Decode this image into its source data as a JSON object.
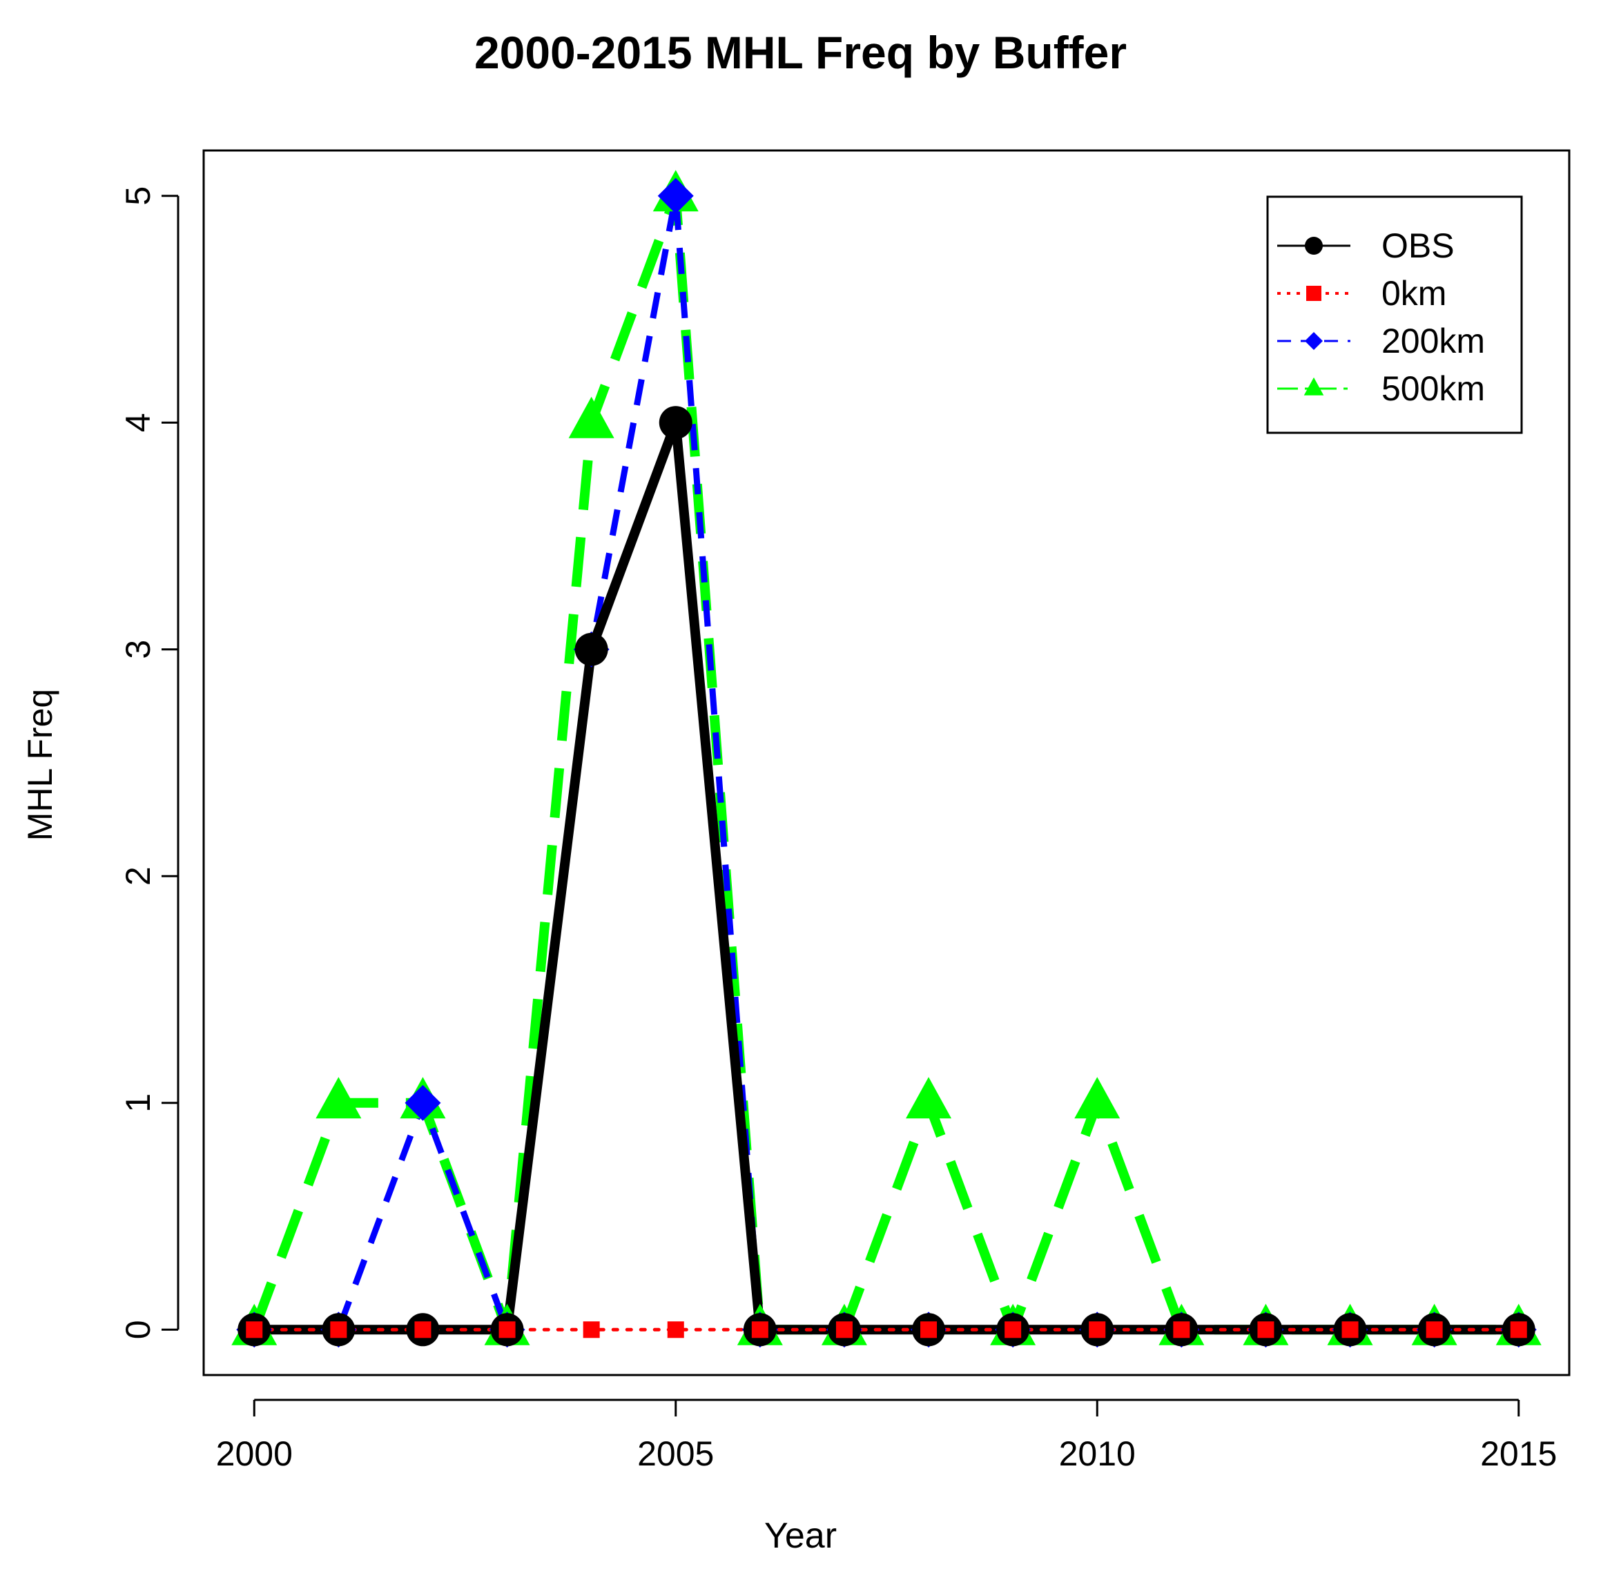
{
  "chart_data": {
    "type": "line",
    "title": "2000-2015 MHL Freq by Buffer",
    "xlabel": "Year",
    "ylabel": "MHL Freq",
    "xlim": [
      1999.4,
      2015.6
    ],
    "ylim": [
      -0.2,
      5.2
    ],
    "x": [
      2000,
      2001,
      2002,
      2003,
      2004,
      2005,
      2006,
      2007,
      2008,
      2009,
      2010,
      2011,
      2012,
      2013,
      2014,
      2015
    ],
    "x_ticks": [
      "2000",
      "2005",
      "2010",
      "2015"
    ],
    "y_ticks": [
      "0",
      "1",
      "2",
      "3",
      "4",
      "5"
    ],
    "legend_position": "top-right",
    "series": [
      {
        "name": "OBS",
        "color": "#000000",
        "marker": "circle",
        "line": "solid",
        "values": [
          0,
          0,
          0,
          0,
          3,
          4,
          0,
          0,
          0,
          0,
          0,
          0,
          0,
          0,
          0,
          0
        ]
      },
      {
        "name": "0km",
        "color": "#ff0000",
        "marker": "square",
        "line": "dotted",
        "values": [
          0,
          0,
          0,
          0,
          0,
          0,
          0,
          0,
          0,
          0,
          0,
          0,
          0,
          0,
          0,
          0
        ]
      },
      {
        "name": "200km",
        "color": "#0000ff",
        "marker": "diamond",
        "line": "dashed",
        "values": [
          0,
          0,
          1,
          0,
          3,
          5,
          0,
          0,
          0,
          0,
          0,
          0,
          0,
          0,
          0,
          0
        ]
      },
      {
        "name": "500km",
        "color": "#00ff00",
        "marker": "triangle",
        "line": "longdash",
        "values": [
          0,
          1,
          1,
          0,
          4,
          5,
          0,
          0,
          1,
          0,
          1,
          0,
          0,
          0,
          0,
          0
        ]
      }
    ]
  }
}
